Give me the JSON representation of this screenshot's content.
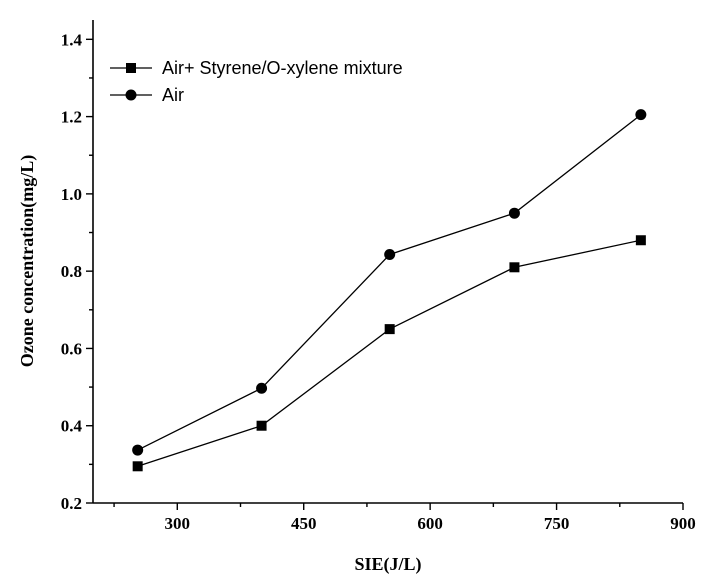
{
  "chart_data": {
    "type": "line",
    "title": "",
    "xlabel": "SIE(J/L)",
    "ylabel": "Ozone concentration(mg/L)",
    "xlim": [
      200,
      900
    ],
    "ylim": [
      0.2,
      1.45
    ],
    "xticks": [
      300,
      450,
      600,
      750,
      900
    ],
    "xtick_labels": [
      "300",
      "450",
      "600",
      "750",
      "900"
    ],
    "yticks": [
      0.2,
      0.4,
      0.6,
      0.8,
      1.0,
      1.2,
      1.4
    ],
    "ytick_labels": [
      "0.2",
      "0.4",
      "0.6",
      "0.8",
      "1.0",
      "1.2",
      "1.4"
    ],
    "grid": false,
    "legend_position": "top-left",
    "series": [
      {
        "name": "Air+ Styrene/O-xylene mixture",
        "marker": "square",
        "color": "#000000",
        "x": [
          253,
          400,
          552,
          700,
          850
        ],
        "y": [
          0.295,
          0.4,
          0.65,
          0.81,
          0.88
        ]
      },
      {
        "name": "Air",
        "marker": "circle",
        "color": "#000000",
        "x": [
          253,
          400,
          552,
          700,
          850
        ],
        "y": [
          0.337,
          0.497,
          0.843,
          0.95,
          1.205
        ]
      }
    ]
  }
}
